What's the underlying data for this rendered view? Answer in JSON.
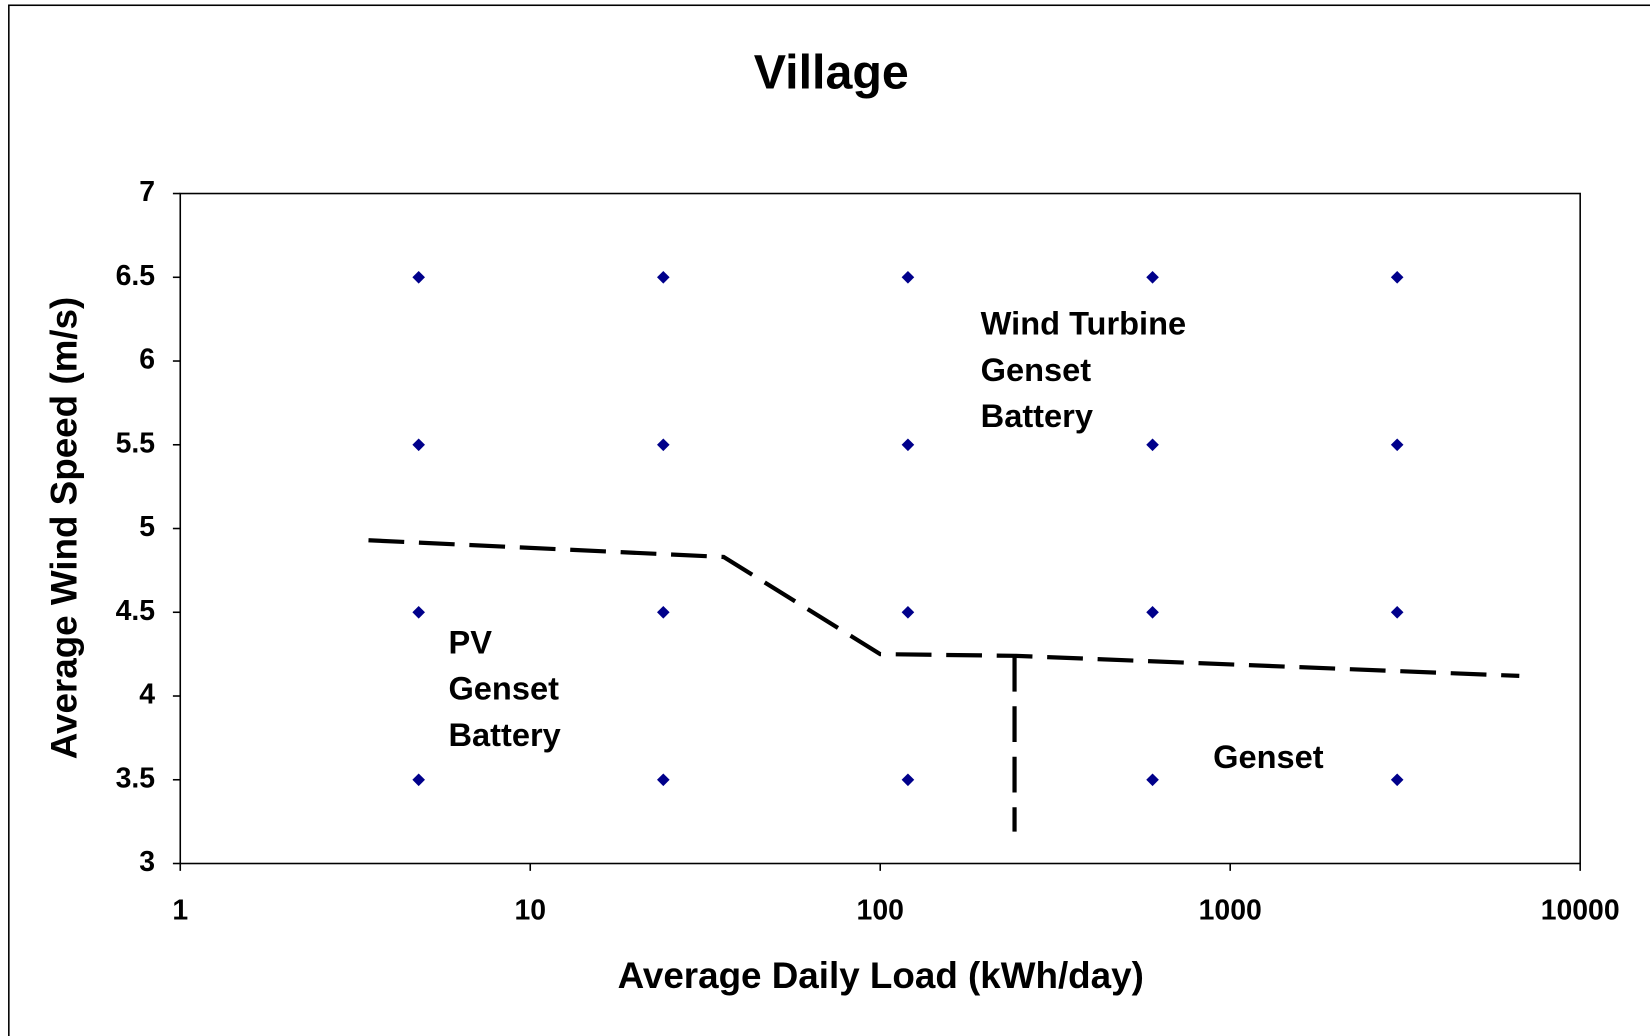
{
  "chart_data": {
    "type": "scatter",
    "title": "Village",
    "x_label": "Average Daily Load (kWh/day)",
    "y_label": "Average Wind Speed (m/s)",
    "x_scale": "log",
    "xlim": [
      1,
      10000
    ],
    "xticks": [
      1,
      10,
      100,
      1000,
      10000
    ],
    "ylim": [
      3,
      7
    ],
    "yticks": [
      3,
      3.5,
      4,
      4.5,
      5,
      5.5,
      6,
      6.5,
      7
    ],
    "grid": false,
    "color": "#00008b",
    "x": [
      4.8,
      24,
      120,
      600,
      3000,
      4.8,
      24,
      120,
      600,
      3000,
      4.8,
      24,
      120,
      600,
      3000,
      4.8,
      24,
      120,
      600,
      3000
    ],
    "values": [
      6.5,
      6.5,
      6.5,
      6.5,
      6.5,
      5.5,
      5.5,
      5.5,
      5.5,
      5.5,
      4.5,
      4.5,
      4.5,
      4.5,
      4.5,
      3.5,
      3.5,
      3.5,
      3.5,
      3.5
    ],
    "boundary_lines": [
      {
        "x": [
          3.45,
          35.7,
          100,
          242,
          6700
        ],
        "y": [
          4.93,
          4.83,
          4.25,
          4.24,
          4.12
        ]
      },
      {
        "x": [
          242,
          242
        ],
        "y": [
          4.24,
          3.19
        ]
      }
    ],
    "annotations": [
      [
        "Wind Turbine",
        "Genset",
        "Battery"
      ],
      [
        "PV",
        "Genset",
        "Battery"
      ],
      [
        "Genset"
      ]
    ]
  }
}
